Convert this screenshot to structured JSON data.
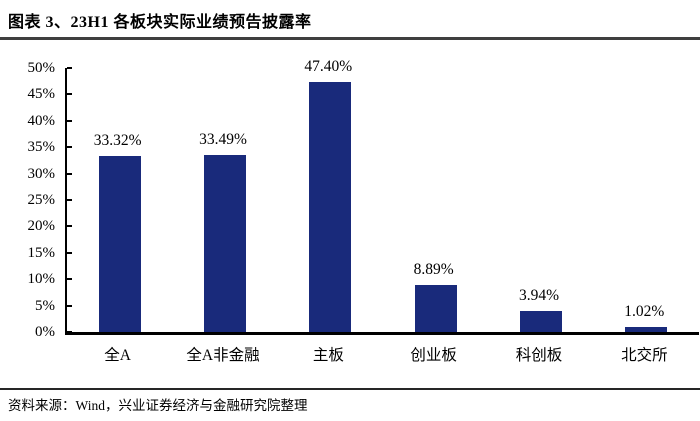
{
  "header": {
    "title": "图表 3、23H1 各板块实际业绩预告披露率"
  },
  "footer": {
    "source": "资料来源：Wind，兴业证券经济与金融研究院整理"
  },
  "chart_data": {
    "type": "bar",
    "title": "23H1 各板块实际业绩预告披露率",
    "categories": [
      "全A",
      "全A非金融",
      "主板",
      "创业板",
      "科创板",
      "北交所"
    ],
    "values": [
      33.32,
      33.49,
      47.4,
      8.89,
      3.94,
      1.02
    ],
    "value_labels": [
      "33.32%",
      "33.49%",
      "47.40%",
      "8.89%",
      "3.94%",
      "1.02%"
    ],
    "xlabel": "",
    "ylabel": "",
    "ylim": [
      0,
      50
    ],
    "ytick_step": 5,
    "ytick_labels": [
      "0%",
      "5%",
      "10%",
      "15%",
      "20%",
      "25%",
      "30%",
      "35%",
      "40%",
      "45%",
      "50%"
    ],
    "grid": false,
    "legend_position": "none",
    "bar_color": "#192A7B",
    "axis_color": "#000000"
  }
}
